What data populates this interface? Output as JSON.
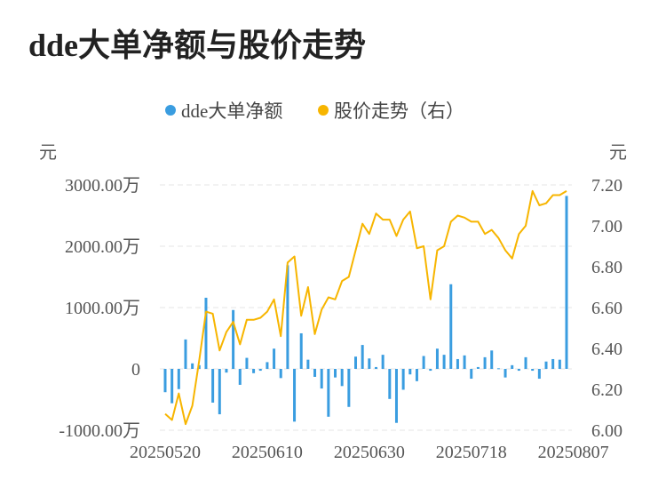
{
  "title": "dde大单净额与股价走势",
  "chart_data": {
    "type": "bar+line",
    "title": "dde大单净额与股价走势",
    "legend": [
      {
        "name": "dde大单净额",
        "color": "#3a9de0",
        "marker": "dot"
      },
      {
        "name": "股价走势（右）",
        "color": "#f7b500",
        "marker": "dot"
      }
    ],
    "legend_placement": "top-center",
    "y_left": {
      "unit_label": "元",
      "ticks": [
        "3000.00万",
        "2000.00万",
        "1000.00万",
        "0",
        "-1000.00万"
      ],
      "tick_values": [
        3000,
        2000,
        1000,
        0,
        -1000
      ],
      "ylim": [
        -1000,
        3000
      ],
      "units": "万元"
    },
    "y_right": {
      "unit_label": "元",
      "ticks": [
        "7.20",
        "7.00",
        "6.80",
        "6.60",
        "6.40",
        "6.20",
        "6.00"
      ],
      "tick_values": [
        7.2,
        7.0,
        6.8,
        6.6,
        6.4,
        6.2,
        6.0
      ],
      "ylim": [
        6.0,
        7.2
      ]
    },
    "x_tick_labels": [
      "20250520",
      "20250610",
      "20250630",
      "20250718",
      "20250807"
    ],
    "x_tick_indices": [
      0,
      15,
      30,
      45,
      60
    ],
    "grid": true,
    "series": [
      {
        "name": "dde大单净额",
        "type": "bar",
        "color": "#3a9de0",
        "axis": "left",
        "values": [
          -380,
          -560,
          -330,
          480,
          90,
          60,
          1160,
          -550,
          -740,
          -60,
          960,
          -260,
          180,
          -70,
          -30,
          110,
          330,
          -150,
          1690,
          -860,
          580,
          150,
          -130,
          -320,
          -780,
          -140,
          -280,
          -620,
          200,
          390,
          170,
          30,
          230,
          -490,
          -880,
          -340,
          -90,
          -200,
          210,
          -30,
          330,
          230,
          1380,
          160,
          220,
          -160,
          30,
          190,
          300,
          10,
          -140,
          60,
          -30,
          190,
          -30,
          -160,
          120,
          160,
          150,
          2820
        ]
      },
      {
        "name": "股价走势（右）",
        "type": "line",
        "color": "#f7b500",
        "axis": "right",
        "values": [
          6.08,
          6.05,
          6.18,
          6.03,
          6.12,
          6.34,
          6.58,
          6.57,
          6.39,
          6.48,
          6.53,
          6.42,
          6.54,
          6.54,
          6.55,
          6.58,
          6.64,
          6.46,
          6.82,
          6.85,
          6.56,
          6.7,
          6.47,
          6.59,
          6.65,
          6.64,
          6.73,
          6.75,
          6.88,
          7.01,
          6.96,
          7.06,
          7.03,
          7.03,
          6.95,
          7.03,
          7.07,
          6.89,
          6.9,
          6.64,
          6.88,
          6.9,
          7.02,
          7.05,
          7.04,
          7.02,
          7.02,
          6.96,
          6.98,
          6.94,
          6.88,
          6.84,
          6.96,
          7.0,
          7.17,
          7.1,
          7.11,
          7.15,
          7.15,
          7.17
        ]
      }
    ]
  }
}
